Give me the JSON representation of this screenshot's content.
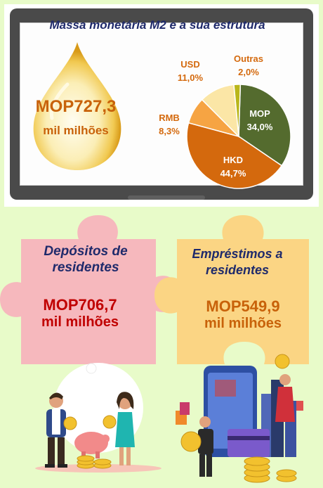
{
  "header": {
    "title": "Massa monetária M2 e a sua estrutura",
    "total_value": "MOP727,3",
    "total_unit": "mil milhões"
  },
  "chart_data": {
    "type": "pie",
    "slices": [
      {
        "name": "MOP",
        "value": 34.0,
        "label": "MOP",
        "value_label": "34,0%",
        "color": "#546b2e"
      },
      {
        "name": "HKD",
        "value": 44.7,
        "label": "HKD",
        "value_label": "44,7%",
        "color": "#d4690d"
      },
      {
        "name": "RMB",
        "value": 8.3,
        "label": "RMB",
        "value_label": "8,3%",
        "color": "#f6a443"
      },
      {
        "name": "USD",
        "value": 11.0,
        "label": "USD",
        "value_label": "11,0%",
        "color": "#fbe6a6"
      },
      {
        "name": "Outras",
        "value": 2.0,
        "label": "Outras",
        "value_label": "2,0%",
        "color": "#b9b61a"
      }
    ]
  },
  "deposits": {
    "title_line1": "Depósitos de",
    "title_line2": "residentes",
    "value": "MOP706,7",
    "unit": "mil milhões",
    "color": "#f6b8bd"
  },
  "loans": {
    "title_line1": "Empréstimos a",
    "title_line2": "residentes",
    "value": "MOP549,9",
    "unit": "mil milhões",
    "color": "#fbd584"
  }
}
